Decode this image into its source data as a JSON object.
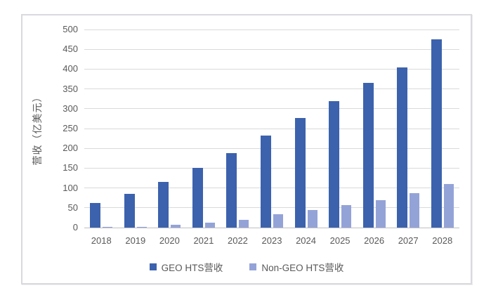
{
  "chart_data": {
    "type": "bar",
    "title": "",
    "categories": [
      "2018",
      "2019",
      "2020",
      "2021",
      "2022",
      "2023",
      "2024",
      "2025",
      "2026",
      "2027",
      "2028"
    ],
    "series": [
      {
        "name": "GEO HTS营收",
        "color": "#3c62ad",
        "values": [
          62,
          85,
          115,
          150,
          188,
          232,
          277,
          320,
          365,
          405,
          475
        ]
      },
      {
        "name": "Non-GEO HTS营收",
        "color": "#94a3d7",
        "values": [
          1,
          2,
          7,
          13,
          19,
          33,
          44,
          56,
          70,
          86,
          110
        ]
      }
    ],
    "xlabel": "",
    "ylabel": "营收（亿美元）",
    "ylim": [
      0,
      500
    ],
    "yticks": [
      0,
      50,
      100,
      150,
      200,
      250,
      300,
      350,
      400,
      450,
      500
    ],
    "grid": true,
    "legend_position": "bottom"
  },
  "style": {
    "gridline_color": "#dadada",
    "axis_line_color": "#bfbfbf",
    "text_color": "#595959",
    "frame_border_color": "#d9d9de",
    "background": "#ffffff"
  }
}
